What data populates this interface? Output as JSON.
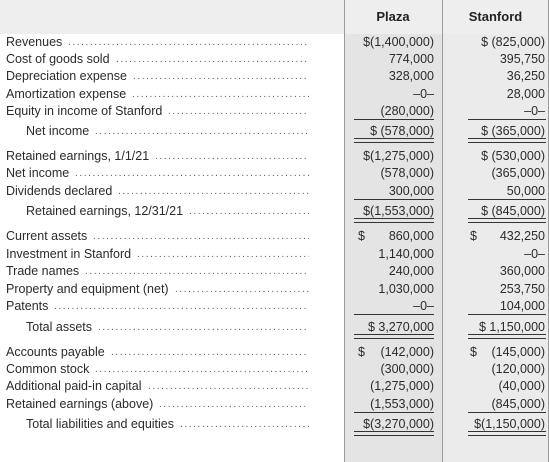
{
  "headers": {
    "plaza": "Plaza",
    "stanford": "Stanford"
  },
  "rows": [
    {
      "label": "Revenues",
      "plaza": "$(1,400,000)",
      "stanford": "$ (825,000)"
    },
    {
      "label": "Cost of goods sold",
      "plaza": "774,000",
      "stanford": "395,750"
    },
    {
      "label": "Depreciation expense",
      "plaza": "328,000",
      "stanford": "36,250"
    },
    {
      "label": "Amortization expense",
      "plaza": "–0–",
      "stanford": "28,000"
    },
    {
      "label": "Equity in income of Stanford",
      "plaza": "(280,000)",
      "stanford": "–0–"
    },
    {
      "label": "Net income",
      "plaza": "$ (578,000)",
      "stanford": "$ (365,000)"
    },
    {
      "label": "Retained earnings, 1/1/21",
      "plaza": "$(1,275,000)",
      "stanford": "$ (530,000)"
    },
    {
      "label": "Net income",
      "plaza": "(578,000)",
      "stanford": "(365,000)"
    },
    {
      "label": "Dividends declared",
      "plaza": "300,000",
      "stanford": "50,000"
    },
    {
      "label": "Retained earnings, 12/31/21",
      "plaza": "$(1,553,000)",
      "stanford": "$ (845,000)"
    },
    {
      "label": "Current assets",
      "plaza": "860,000",
      "stanford": "432,250",
      "plaza_cur": "$",
      "stanford_cur": "$"
    },
    {
      "label": "Investment in Stanford",
      "plaza": "1,140,000",
      "stanford": "–0–"
    },
    {
      "label": "Trade names",
      "plaza": "240,000",
      "stanford": "360,000"
    },
    {
      "label": "Property and equipment (net)",
      "plaza": "1,030,000",
      "stanford": "253,750"
    },
    {
      "label": "Patents",
      "plaza": "–0–",
      "stanford": "104,000"
    },
    {
      "label": "Total assets",
      "plaza": "$ 3,270,000",
      "stanford": "$ 1,150,000"
    },
    {
      "label": "Accounts payable",
      "plaza": "(142,000)",
      "stanford": "(145,000)",
      "plaza_cur": "$",
      "stanford_cur": "$"
    },
    {
      "label": "Common stock",
      "plaza": "(300,000)",
      "stanford": "(120,000)"
    },
    {
      "label": "Additional paid-in capital",
      "plaza": "(1,275,000)",
      "stanford": "(40,000)"
    },
    {
      "label": "Retained earnings (above)",
      "plaza": "(1,553,000)",
      "stanford": "(845,000)"
    },
    {
      "label": "Total liabilities and equities",
      "plaza": "$(3,270,000)",
      "stanford": "$(1,150,000)"
    }
  ]
}
